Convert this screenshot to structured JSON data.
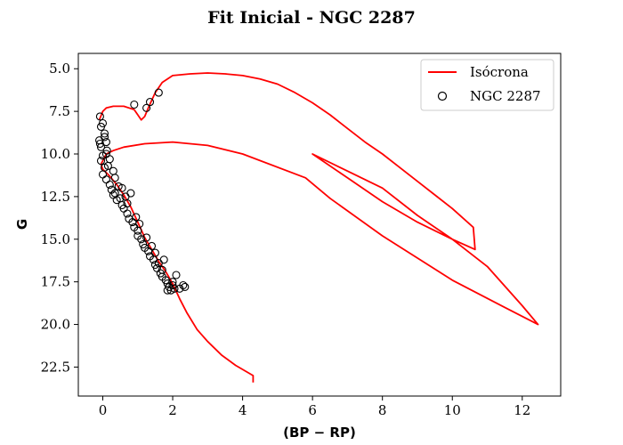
{
  "chart_data": {
    "type": "scatter",
    "title": "Fit Inicial - NGC 2287",
    "xlabel": "(BP − RP)",
    "ylabel": "G",
    "xlim": [
      -0.7,
      13.1
    ],
    "ylim": [
      24.2,
      4.1
    ],
    "y_inverted": true,
    "xticks": [
      0,
      2,
      4,
      6,
      8,
      10,
      12
    ],
    "yticks": [
      5.0,
      7.5,
      10.0,
      12.5,
      15.0,
      17.5,
      20.0,
      22.5
    ],
    "ytick_labels": [
      "5.0",
      "7.5",
      "10.0",
      "12.5",
      "15.0",
      "17.5",
      "20.0",
      "22.5"
    ],
    "grid": false,
    "legend_position": "top-right",
    "series": [
      {
        "name": "Isócrona",
        "kind": "line",
        "color": "#ff0000",
        "points": [
          [
            -0.1,
            8.0
          ],
          [
            0.0,
            7.5
          ],
          [
            0.1,
            7.3
          ],
          [
            0.3,
            7.2
          ],
          [
            0.6,
            7.2
          ],
          [
            0.9,
            7.4
          ],
          [
            1.0,
            7.7
          ],
          [
            1.1,
            8.0
          ],
          [
            1.2,
            7.8
          ],
          [
            1.3,
            7.3
          ],
          [
            1.5,
            6.4
          ],
          [
            1.7,
            5.8
          ],
          [
            2.0,
            5.4
          ],
          [
            2.5,
            5.3
          ],
          [
            3.0,
            5.25
          ],
          [
            3.5,
            5.3
          ],
          [
            4.0,
            5.4
          ],
          [
            4.5,
            5.6
          ],
          [
            5.0,
            5.9
          ],
          [
            5.5,
            6.4
          ],
          [
            6.0,
            7.0
          ],
          [
            6.5,
            7.7
          ],
          [
            7.0,
            8.5
          ],
          [
            7.5,
            9.3
          ],
          [
            8.0,
            10.0
          ],
          [
            8.5,
            10.8
          ],
          [
            9.0,
            11.6
          ],
          [
            9.5,
            12.4
          ],
          [
            10.0,
            13.2
          ],
          [
            10.6,
            14.3
          ],
          [
            10.65,
            15.6
          ],
          [
            10.0,
            15.0
          ],
          [
            9.0,
            14.0
          ],
          [
            8.0,
            12.8
          ],
          [
            7.0,
            11.4
          ],
          [
            6.0,
            10.0
          ],
          [
            7.0,
            11.0
          ],
          [
            8.0,
            12.0
          ],
          [
            9.0,
            13.6
          ],
          [
            10.0,
            15.0
          ],
          [
            11.0,
            16.6
          ],
          [
            12.0,
            18.9
          ],
          [
            12.45,
            20.0
          ],
          [
            11.5,
            19.0
          ],
          [
            10.0,
            17.4
          ],
          [
            8.0,
            14.8
          ],
          [
            6.5,
            12.6
          ],
          [
            5.8,
            11.4
          ],
          [
            4.0,
            10.0
          ],
          [
            3.0,
            9.5
          ],
          [
            2.0,
            9.3
          ],
          [
            1.2,
            9.4
          ],
          [
            0.6,
            9.6
          ],
          [
            0.3,
            9.8
          ],
          [
            0.1,
            10.0
          ],
          [
            -0.05,
            10.6
          ],
          [
            0.0,
            10.9
          ],
          [
            0.2,
            11.3
          ],
          [
            0.4,
            11.8
          ],
          [
            0.6,
            12.4
          ],
          [
            0.8,
            13.1
          ],
          [
            1.0,
            14.0
          ],
          [
            1.2,
            14.9
          ],
          [
            1.4,
            15.6
          ],
          [
            1.6,
            16.3
          ],
          [
            1.8,
            16.9
          ],
          [
            2.0,
            17.6
          ],
          [
            2.2,
            18.5
          ],
          [
            2.4,
            19.3
          ],
          [
            2.7,
            20.3
          ],
          [
            3.0,
            21.0
          ],
          [
            3.4,
            21.8
          ],
          [
            3.8,
            22.4
          ],
          [
            4.3,
            23.0
          ],
          [
            4.3,
            23.4
          ]
        ]
      },
      {
        "name": "NGC 2287",
        "kind": "scatter",
        "color": "#000000",
        "marker": "open-circle",
        "points": [
          [
            -0.08,
            7.8
          ],
          [
            -0.05,
            8.4
          ],
          [
            0.0,
            8.2
          ],
          [
            0.05,
            8.8
          ],
          [
            0.1,
            9.3
          ],
          [
            0.12,
            9.8
          ],
          [
            0.9,
            7.1
          ],
          [
            1.25,
            7.3
          ],
          [
            1.35,
            6.95
          ],
          [
            1.6,
            6.4
          ],
          [
            -0.1,
            9.2
          ],
          [
            -0.05,
            9.6
          ],
          [
            0.0,
            10.1
          ],
          [
            -0.05,
            10.4
          ],
          [
            0.05,
            10.8
          ],
          [
            0.0,
            11.2
          ],
          [
            0.1,
            11.5
          ],
          [
            0.2,
            11.8
          ],
          [
            0.25,
            12.1
          ],
          [
            0.3,
            12.4
          ],
          [
            0.35,
            12.3
          ],
          [
            0.4,
            12.7
          ],
          [
            0.5,
            12.6
          ],
          [
            0.55,
            13.0
          ],
          [
            0.6,
            13.2
          ],
          [
            0.7,
            13.5
          ],
          [
            0.8,
            12.3
          ],
          [
            0.75,
            13.8
          ],
          [
            0.85,
            14.0
          ],
          [
            0.9,
            14.3
          ],
          [
            1.0,
            14.5
          ],
          [
            1.0,
            14.8
          ],
          [
            1.1,
            15.0
          ],
          [
            1.15,
            15.3
          ],
          [
            1.2,
            15.5
          ],
          [
            1.3,
            15.7
          ],
          [
            1.35,
            16.0
          ],
          [
            1.45,
            16.2
          ],
          [
            1.5,
            16.5
          ],
          [
            1.55,
            16.7
          ],
          [
            1.6,
            16.4
          ],
          [
            1.65,
            17.0
          ],
          [
            1.7,
            17.2
          ],
          [
            1.8,
            17.4
          ],
          [
            1.85,
            17.6
          ],
          [
            1.9,
            17.8
          ],
          [
            2.0,
            17.5
          ],
          [
            2.05,
            17.9
          ],
          [
            2.1,
            17.1
          ],
          [
            1.75,
            16.2
          ],
          [
            1.5,
            15.8
          ],
          [
            1.25,
            14.9
          ],
          [
            0.95,
            13.7
          ],
          [
            0.65,
            12.5
          ],
          [
            0.35,
            11.4
          ],
          [
            0.15,
            10.7
          ],
          [
            0.3,
            11.0
          ],
          [
            0.45,
            11.9
          ],
          [
            0.7,
            12.9
          ],
          [
            1.05,
            14.1
          ],
          [
            1.4,
            15.4
          ],
          [
            1.95,
            18.0
          ],
          [
            2.2,
            17.9
          ],
          [
            2.3,
            17.7
          ],
          [
            2.35,
            17.8
          ],
          [
            2.0,
            17.7
          ],
          [
            1.85,
            18.0
          ],
          [
            1.7,
            16.8
          ],
          [
            0.55,
            12.0
          ],
          [
            0.2,
            10.3
          ],
          [
            0.1,
            10.0
          ],
          [
            -0.08,
            9.4
          ],
          [
            0.05,
            9.0
          ]
        ]
      }
    ]
  }
}
